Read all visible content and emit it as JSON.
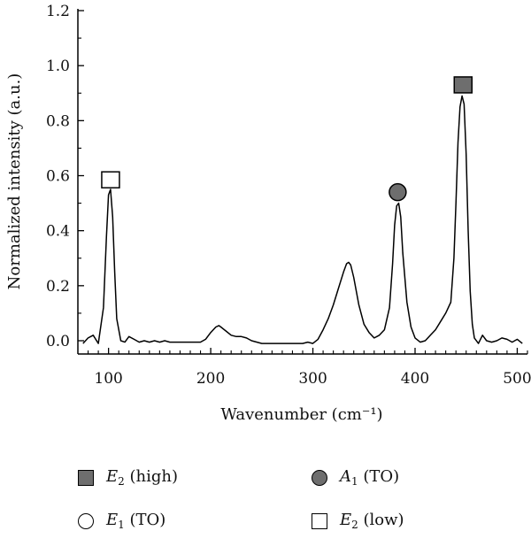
{
  "chart_data": {
    "type": "line",
    "xlabel": "Wavenumber (cm⁻¹)",
    "ylabel": "Normalized intensity (a.u.)",
    "xlim": [
      70,
      510
    ],
    "ylim": [
      -0.05,
      1.2
    ],
    "x_ticks": [
      100,
      200,
      300,
      400,
      500
    ],
    "y_ticks": [
      0.0,
      0.2,
      0.4,
      0.6,
      0.8,
      1.0,
      1.2
    ],
    "y_tick_labels": [
      "0.0",
      "0.2",
      "0.4",
      "0.6",
      "0.8",
      "1.0",
      "1.2"
    ],
    "series": [
      {
        "x": [
          75,
          80,
          85,
          90,
          95,
          98,
          100,
          102,
          104,
          106,
          108,
          112,
          116,
          120,
          125,
          130,
          135,
          140,
          145,
          150,
          155,
          160,
          170,
          180,
          190,
          195,
          200,
          205,
          208,
          210,
          215,
          220,
          225,
          230,
          235,
          240,
          250,
          260,
          270,
          280,
          290,
          295,
          300,
          305,
          310,
          315,
          320,
          325,
          330,
          333,
          335,
          337,
          340,
          345,
          350,
          355,
          360,
          365,
          370,
          375,
          378,
          380,
          382,
          384,
          386,
          388,
          392,
          396,
          400,
          405,
          410,
          415,
          420,
          425,
          430,
          435,
          438,
          440,
          442,
          444,
          446,
          448,
          450,
          452,
          454,
          456,
          458,
          462,
          466,
          470,
          475,
          480,
          485,
          490,
          495,
          500,
          505
        ],
        "y": [
          -0.01,
          0.01,
          0.02,
          -0.01,
          0.12,
          0.38,
          0.53,
          0.55,
          0.45,
          0.25,
          0.08,
          0.0,
          -0.005,
          0.015,
          0.005,
          -0.005,
          0.0,
          -0.005,
          0.0,
          -0.005,
          0.0,
          -0.005,
          -0.005,
          -0.005,
          -0.005,
          0.005,
          0.03,
          0.05,
          0.055,
          0.05,
          0.035,
          0.02,
          0.015,
          0.015,
          0.01,
          0.0,
          -0.01,
          -0.01,
          -0.01,
          -0.01,
          -0.01,
          -0.005,
          -0.01,
          0.005,
          0.04,
          0.08,
          0.13,
          0.19,
          0.25,
          0.28,
          0.285,
          0.275,
          0.23,
          0.13,
          0.06,
          0.03,
          0.01,
          0.02,
          0.04,
          0.12,
          0.28,
          0.42,
          0.49,
          0.5,
          0.45,
          0.32,
          0.14,
          0.05,
          0.01,
          -0.005,
          0.0,
          0.02,
          0.04,
          0.07,
          0.1,
          0.14,
          0.3,
          0.5,
          0.72,
          0.85,
          0.89,
          0.86,
          0.68,
          0.4,
          0.18,
          0.06,
          0.01,
          -0.01,
          0.02,
          0.0,
          -0.005,
          0.0,
          0.01,
          0.005,
          -0.005,
          0.005,
          -0.01
        ]
      }
    ],
    "markers": [
      {
        "x": 102,
        "y": 0.585,
        "shape": "square",
        "fill": "open"
      },
      {
        "x": 383,
        "y": 0.54,
        "shape": "circle",
        "fill": "filled"
      },
      {
        "x": 447,
        "y": 0.93,
        "shape": "square",
        "fill": "filled"
      }
    ],
    "grid": false,
    "line_color": "#000000",
    "marker_fill_color": "#6e6e6e"
  },
  "legend": {
    "placement": "bottom",
    "items": [
      {
        "symbol": "E",
        "sub": "2",
        "rest": " (high)",
        "shape": "square-filled"
      },
      {
        "symbol": "A",
        "sub": "1",
        "rest": " (TO)",
        "shape": "circle-filled"
      },
      {
        "symbol": "E",
        "sub": "1",
        "rest": " (TO)",
        "shape": "circle-open"
      },
      {
        "symbol": "E",
        "sub": "2",
        "rest": " (low)",
        "shape": "square-open"
      }
    ]
  }
}
